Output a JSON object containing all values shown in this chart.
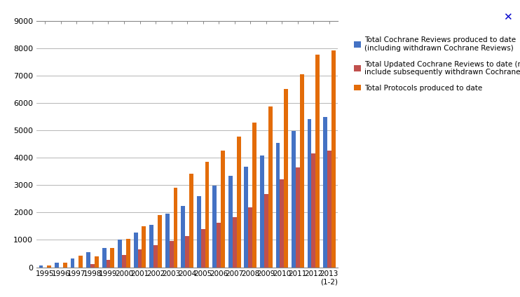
{
  "year_labels": [
    "1995",
    "1996",
    "1997",
    "1998",
    "1999",
    "2000",
    "2001",
    "2002",
    "2003",
    "2004",
    "2005",
    "2006",
    "2007",
    "2008",
    "2009",
    "2010",
    "2011",
    "2012",
    "2013\n(1-2)"
  ],
  "total_cochrane": [
    70,
    170,
    330,
    560,
    700,
    1000,
    1270,
    1560,
    1950,
    2250,
    2600,
    2980,
    3330,
    3680,
    4090,
    4540,
    4970,
    5400,
    5500
  ],
  "total_updated": [
    0,
    0,
    0,
    110,
    270,
    460,
    650,
    800,
    970,
    1150,
    1400,
    1620,
    1840,
    2200,
    2680,
    3220,
    3640,
    4150,
    4260
  ],
  "total_protocols": [
    70,
    170,
    420,
    390,
    700,
    1040,
    1500,
    1900,
    2900,
    3420,
    3850,
    4270,
    4780,
    5280,
    5870,
    6500,
    7050,
    7760,
    7920
  ],
  "color_blue": "#4472C4",
  "color_red": "#C0504D",
  "color_orange": "#E36C09",
  "ylim": [
    0,
    9000
  ],
  "yticks": [
    0,
    1000,
    2000,
    3000,
    4000,
    5000,
    6000,
    7000,
    8000,
    9000
  ],
  "legend_blue": "Total Cochrane Reviews produced to date\n(including withdrawn Cochrane Reviews)",
  "legend_red": "Total Updated Cochrane Reviews to date (may\ninclude subsequently withdrawn Cochrane Reviews)",
  "legend_orange": "Total Protocols produced to date",
  "background_color": "#FFFFFF",
  "grid_color": "#AAAAAA",
  "bar_width": 0.26
}
